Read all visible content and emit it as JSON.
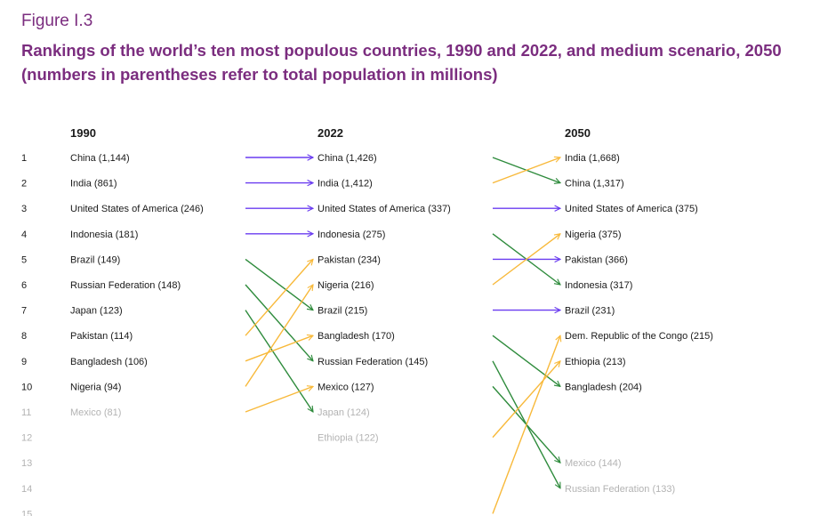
{
  "figure": {
    "label": "Figure I.3",
    "title": "Rankings of the world’s ten most populous countries, 1990 and 2022, and medium scenario, 2050 (numbers in parentheses refer to total population in millions)"
  },
  "colors": {
    "same_rank": "#6a3cf0",
    "rank_up": "#f8b93a",
    "rank_down": "#2e8b3c",
    "text": "#1a1a1a",
    "muted_text": "#b3b3b3"
  },
  "chart_data": {
    "type": "table",
    "title": "Rankings of the world’s ten most populous countries, 1990 and 2022, and medium scenario, 2050 (numbers in parentheses refer to total population in millions)",
    "ranks": [
      "1",
      "2",
      "3",
      "4",
      "5",
      "6",
      "7",
      "8",
      "9",
      "10",
      "11",
      "12",
      "13",
      "14",
      "15"
    ],
    "columns": [
      {
        "year": "1990",
        "entries": [
          {
            "rank": 1,
            "label": "China (1,144)",
            "top10": true
          },
          {
            "rank": 2,
            "label": "India (861)",
            "top10": true
          },
          {
            "rank": 3,
            "label": "United States of America (246)",
            "top10": true
          },
          {
            "rank": 4,
            "label": "Indonesia (181)",
            "top10": true
          },
          {
            "rank": 5,
            "label": "Brazil (149)",
            "top10": true
          },
          {
            "rank": 6,
            "label": "Russian Federation (148)",
            "top10": true
          },
          {
            "rank": 7,
            "label": "Japan (123)",
            "top10": true
          },
          {
            "rank": 8,
            "label": "Pakistan (114)",
            "top10": true
          },
          {
            "rank": 9,
            "label": "Bangladesh (106)",
            "top10": true
          },
          {
            "rank": 10,
            "label": "Nigeria (94)",
            "top10": true
          },
          {
            "rank": 11,
            "label": "Mexico (81)",
            "top10": false
          }
        ]
      },
      {
        "year": "2022",
        "entries": [
          {
            "rank": 1,
            "label": "China (1,426)",
            "top10": true
          },
          {
            "rank": 2,
            "label": "India (1,412)",
            "top10": true
          },
          {
            "rank": 3,
            "label": "United States of America (337)",
            "top10": true
          },
          {
            "rank": 4,
            "label": "Indonesia (275)",
            "top10": true
          },
          {
            "rank": 5,
            "label": "Pakistan (234)",
            "top10": true
          },
          {
            "rank": 6,
            "label": "Nigeria (216)",
            "top10": true
          },
          {
            "rank": 7,
            "label": "Brazil (215)",
            "top10": true
          },
          {
            "rank": 8,
            "label": "Bangladesh (170)",
            "top10": true
          },
          {
            "rank": 9,
            "label": "Russian Federation (145)",
            "top10": true
          },
          {
            "rank": 10,
            "label": "Mexico (127)",
            "top10": true
          },
          {
            "rank": 11,
            "label": "Japan (124)",
            "top10": false
          },
          {
            "rank": 12,
            "label": "Ethiopia (122)",
            "top10": false
          }
        ]
      },
      {
        "year": "2050",
        "entries": [
          {
            "rank": 1,
            "label": "India (1,668)",
            "top10": true
          },
          {
            "rank": 2,
            "label": "China (1,317)",
            "top10": true
          },
          {
            "rank": 3,
            "label": "United States of America (375)",
            "top10": true
          },
          {
            "rank": 4,
            "label": "Nigeria (375)",
            "top10": true
          },
          {
            "rank": 5,
            "label": "Pakistan (366)",
            "top10": true
          },
          {
            "rank": 6,
            "label": "Indonesia (317)",
            "top10": true
          },
          {
            "rank": 7,
            "label": "Brazil (231)",
            "top10": true
          },
          {
            "rank": 8,
            "label": "Dem. Republic of the Congo (215)",
            "top10": true
          },
          {
            "rank": 9,
            "label": "Ethiopia (213)",
            "top10": true
          },
          {
            "rank": 10,
            "label": "Bangladesh (204)",
            "top10": true
          },
          {
            "rank": 13,
            "label": "Mexico (144)",
            "top10": false
          },
          {
            "rank": 14,
            "label": "Russian Federation (133)",
            "top10": false
          }
        ]
      }
    ],
    "transitions": [
      {
        "period": "1990-2022",
        "links": [
          {
            "country": "China",
            "from": 1,
            "to": 1
          },
          {
            "country": "India",
            "from": 2,
            "to": 2
          },
          {
            "country": "United States of America",
            "from": 3,
            "to": 3
          },
          {
            "country": "Indonesia",
            "from": 4,
            "to": 4
          },
          {
            "country": "Brazil",
            "from": 5,
            "to": 7
          },
          {
            "country": "Russian Federation",
            "from": 6,
            "to": 9
          },
          {
            "country": "Japan",
            "from": 7,
            "to": 11
          },
          {
            "country": "Pakistan",
            "from": 8,
            "to": 5
          },
          {
            "country": "Bangladesh",
            "from": 9,
            "to": 8
          },
          {
            "country": "Nigeria",
            "from": 10,
            "to": 6
          },
          {
            "country": "Mexico",
            "from": 11,
            "to": 10
          }
        ]
      },
      {
        "period": "2022-2050",
        "links": [
          {
            "country": "China",
            "from": 1,
            "to": 2
          },
          {
            "country": "India",
            "from": 2,
            "to": 1
          },
          {
            "country": "United States of America",
            "from": 3,
            "to": 3
          },
          {
            "country": "Indonesia",
            "from": 4,
            "to": 6
          },
          {
            "country": "Pakistan",
            "from": 5,
            "to": 5
          },
          {
            "country": "Nigeria",
            "from": 6,
            "to": 4
          },
          {
            "country": "Brazil",
            "from": 7,
            "to": 7
          },
          {
            "country": "Bangladesh",
            "from": 8,
            "to": 10
          },
          {
            "country": "Russian Federation",
            "from": 9,
            "to": 14
          },
          {
            "country": "Mexico",
            "from": 10,
            "to": 13
          },
          {
            "country": "Ethiopia",
            "from": 12,
            "to": 9
          },
          {
            "country": "Dem. Republic of the Congo",
            "from": 15,
            "to": 8
          }
        ]
      }
    ]
  }
}
